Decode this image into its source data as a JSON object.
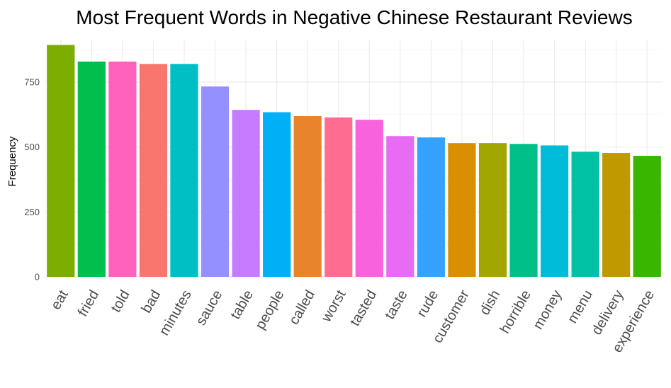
{
  "chart_data": {
    "type": "bar",
    "title": "Most Frequent Words in Negative Chinese Restaurant Reviews",
    "xlabel": "",
    "ylabel": "Frequency",
    "ylim": [
      0,
      900
    ],
    "yticks": [
      0,
      250,
      500,
      750
    ],
    "grid": true,
    "legend": "none",
    "categories": [
      "eat",
      "fried",
      "told",
      "bad",
      "minutes",
      "sauce",
      "table",
      "people",
      "called",
      "worst",
      "tasted",
      "taste",
      "rude",
      "customer",
      "dish",
      "horrible",
      "money",
      "menu",
      "delivery",
      "experience"
    ],
    "values": [
      893,
      829,
      829,
      820,
      820,
      733,
      643,
      634,
      619,
      614,
      605,
      542,
      537,
      515,
      515,
      512,
      506,
      482,
      477,
      466
    ],
    "colors": [
      "#7CAE00",
      "#00BF4C",
      "#FF62BC",
      "#F8766D",
      "#00BFC4",
      "#9590FF",
      "#C77CFF",
      "#00B0F6",
      "#E9842C",
      "#FF6C91",
      "#F962DD",
      "#E76BF3",
      "#35A2FF",
      "#D89000",
      "#A3A500",
      "#00C087",
      "#00BCD8",
      "#00C1A3",
      "#BF9900",
      "#39B600"
    ]
  }
}
